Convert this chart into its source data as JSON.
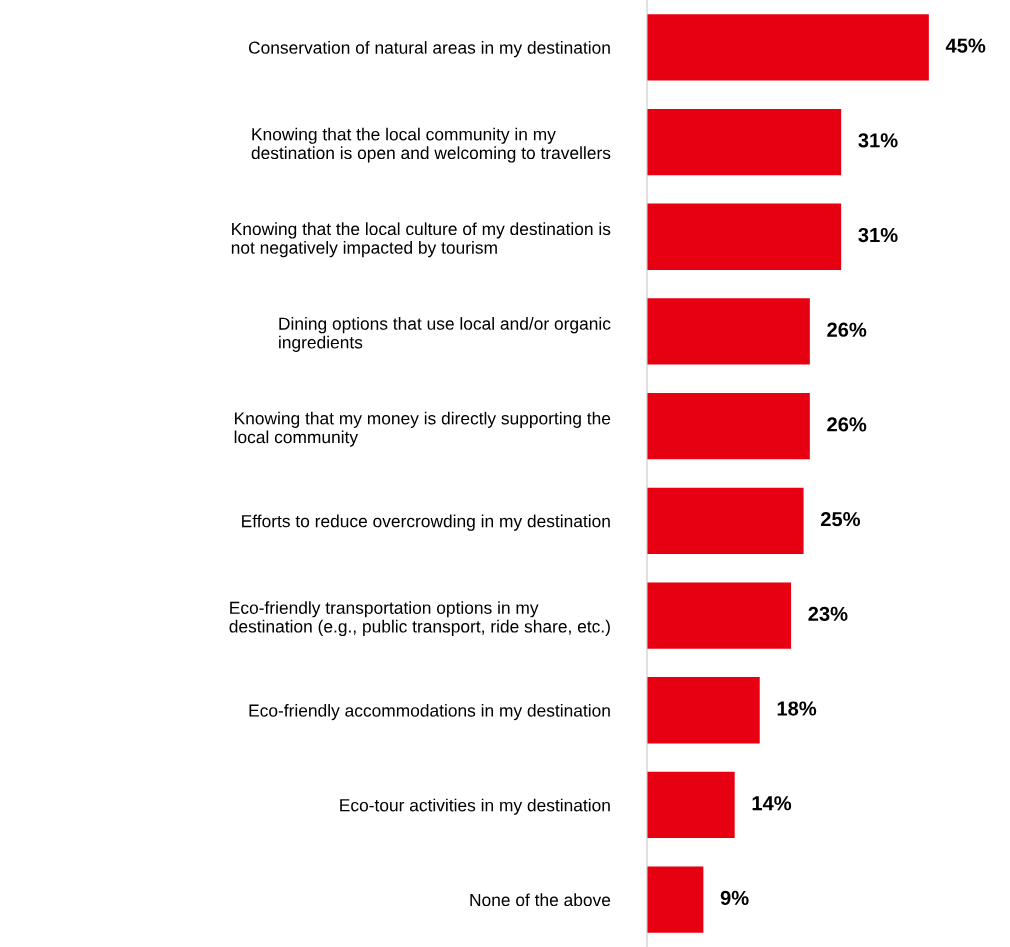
{
  "chart_data": {
    "type": "bar",
    "orientation": "horizontal",
    "categories": [
      "Conservation of natural areas in my destination",
      "Knowing that the local community in my\ndestination is open and welcoming to travellers",
      "Knowing that the local culture of my destination is\nnot negatively impacted by tourism",
      "Dining options that use local and/or organic\ningredients",
      "Knowing that my money is directly supporting the\nlocal community",
      "Efforts to reduce overcrowding in my destination",
      "Eco-friendly transportation options in my\ndestination (e.g., public transport, ride share, etc.)",
      "Eco-friendly accommodations in my destination",
      "Eco-tour activities in my destination",
      "None of the above"
    ],
    "values": [
      45,
      31,
      31,
      26,
      26,
      25,
      23,
      18,
      14,
      9
    ],
    "value_labels": [
      "45%",
      "31%",
      "31%",
      "26%",
      "26%",
      "25%",
      "23%",
      "18%",
      "14%",
      "9%"
    ],
    "color": "#e60012",
    "tick_labels": "y",
    "grid": false,
    "legend": false
  }
}
